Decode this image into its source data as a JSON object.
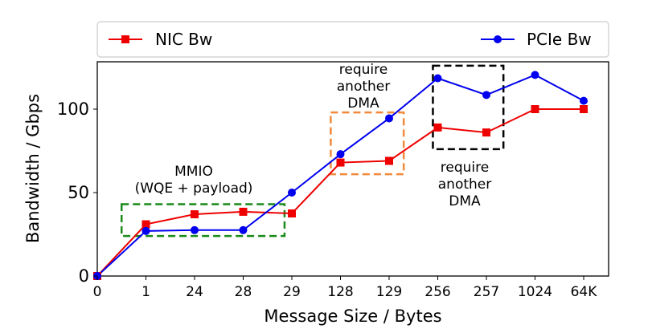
{
  "chart_data": {
    "type": "line",
    "categories": [
      "0",
      "1",
      "24",
      "28",
      "29",
      "128",
      "129",
      "256",
      "257",
      "1024",
      "64K"
    ],
    "series": [
      {
        "name": "NIC Bw",
        "color": "#ee0000",
        "marker": "square",
        "values": [
          0,
          31,
          37,
          38.5,
          37.5,
          68,
          69,
          89,
          86,
          100,
          100
        ]
      },
      {
        "name": "PCIe Bw",
        "color": "#0000ee",
        "marker": "circle",
        "values": [
          0,
          27,
          27.5,
          27.5,
          50,
          73,
          94.5,
          118.5,
          108.5,
          120.5,
          105
        ]
      }
    ],
    "xlabel": "Message Size / Bytes",
    "ylabel": "Bandwidth / Gbps",
    "ylim": [
      0,
      127
    ],
    "yticks": [
      0,
      50,
      100
    ],
    "grid": false,
    "legend": "top, outside, two entries left and right",
    "annotations": [
      {
        "id": "mmio",
        "lines": [
          "MMIO",
          "(WQE + payload)"
        ],
        "box_color": "#1a8a1a",
        "x_from": 0.5,
        "x_to": 3.85,
        "y_from": 24,
        "y_to": 43
      },
      {
        "id": "dma1",
        "lines": [
          "require",
          "another",
          "DMA"
        ],
        "box_color": "#f08a3c",
        "x_from": 4.8,
        "x_to": 6.3,
        "y_from": 61,
        "y_to": 98
      },
      {
        "id": "dma2",
        "lines": [
          "require",
          "another",
          "DMA"
        ],
        "box_color": "#000000",
        "x_from": 6.9,
        "x_to": 8.35,
        "y_from": 76,
        "y_to": 126
      }
    ]
  }
}
